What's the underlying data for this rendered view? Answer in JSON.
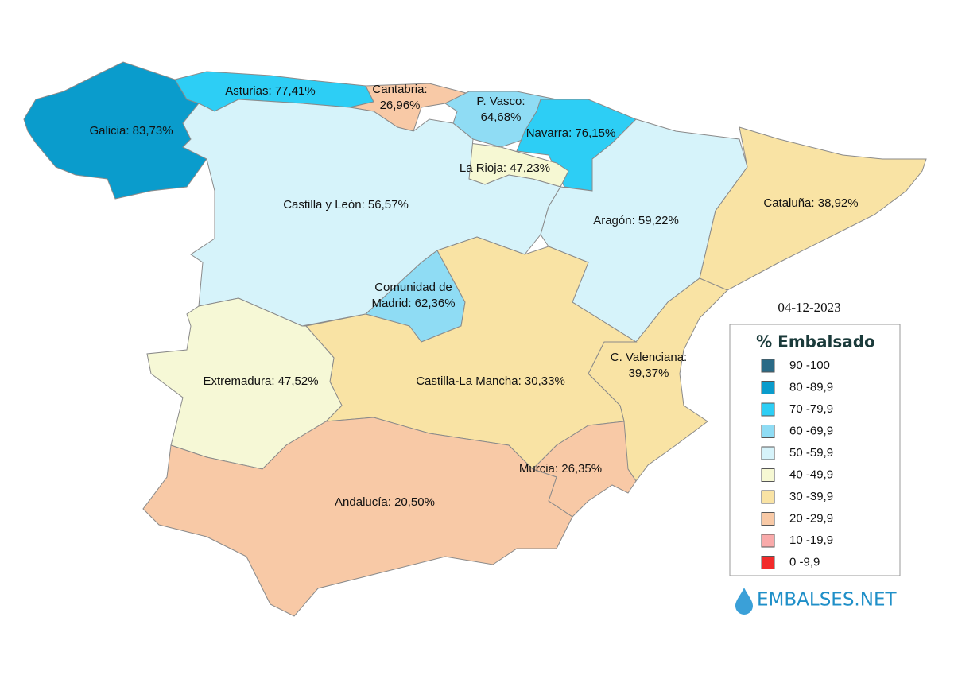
{
  "date": "04-12-2023",
  "brand": "EMBALSES.NET",
  "regions": [
    {
      "label": [
        "Galicia: 83,73%"
      ],
      "color": "#0a9ccc"
    },
    {
      "label": [
        "Asturias: 77,41%"
      ],
      "color": "#2dcef5"
    },
    {
      "label": [
        "Cantabria:",
        "26,96%"
      ],
      "color": "#f8c9a6"
    },
    {
      "label": [
        "P. Vasco:",
        "64,68%"
      ],
      "color": "#8fdcf4"
    },
    {
      "label": [
        "Navarra: 76,15%"
      ],
      "color": "#2dcef5"
    },
    {
      "label": [
        "La Rioja: 47,23%"
      ],
      "color": "#f6f8d3"
    },
    {
      "label": [
        "Castilla y León: 56,57%"
      ],
      "color": "#d6f3fa"
    },
    {
      "label": [
        "Comunidad de",
        "Madrid: 62,36%"
      ],
      "color": "#8fdcf4"
    },
    {
      "label": [
        "Aragón: 59,22%"
      ],
      "color": "#d6f3fa"
    },
    {
      "label": [
        "Cataluña: 38,92%"
      ],
      "color": "#f9e3a4"
    },
    {
      "label": [
        "C. Valenciana:",
        "39,37%"
      ],
      "color": "#f9e3a4"
    },
    {
      "label": [
        "Castilla-La Mancha: 30,33%"
      ],
      "color": "#f9e3a4"
    },
    {
      "label": [
        "Extremadura: 47,52%"
      ],
      "color": "#f6f8d6"
    },
    {
      "label": [
        "Murcia: 26,35%"
      ],
      "color": "#f8c9a6"
    },
    {
      "label": [
        "Andalucía: 20,50%"
      ],
      "color": "#f8c9a6"
    }
  ],
  "legend": {
    "title": "% Embalsado",
    "items": [
      {
        "label": "90 -100",
        "color": "#2a6a86"
      },
      {
        "label": "80 -89,9",
        "color": "#0a9ccc"
      },
      {
        "label": "70 -79,9",
        "color": "#2dcef5"
      },
      {
        "label": "60 -69,9",
        "color": "#8fdcf4"
      },
      {
        "label": "50 -59,9",
        "color": "#d6f3fa"
      },
      {
        "label": "40 -49,9",
        "color": "#f6f8d3"
      },
      {
        "label": "30 -39,9",
        "color": "#f9e3a4"
      },
      {
        "label": "20 -29,9",
        "color": "#f8c9a6"
      },
      {
        "label": "10 -19,9",
        "color": "#f9aaaa"
      },
      {
        "label": "0 -9,9",
        "color": "#f22a2a"
      }
    ]
  }
}
